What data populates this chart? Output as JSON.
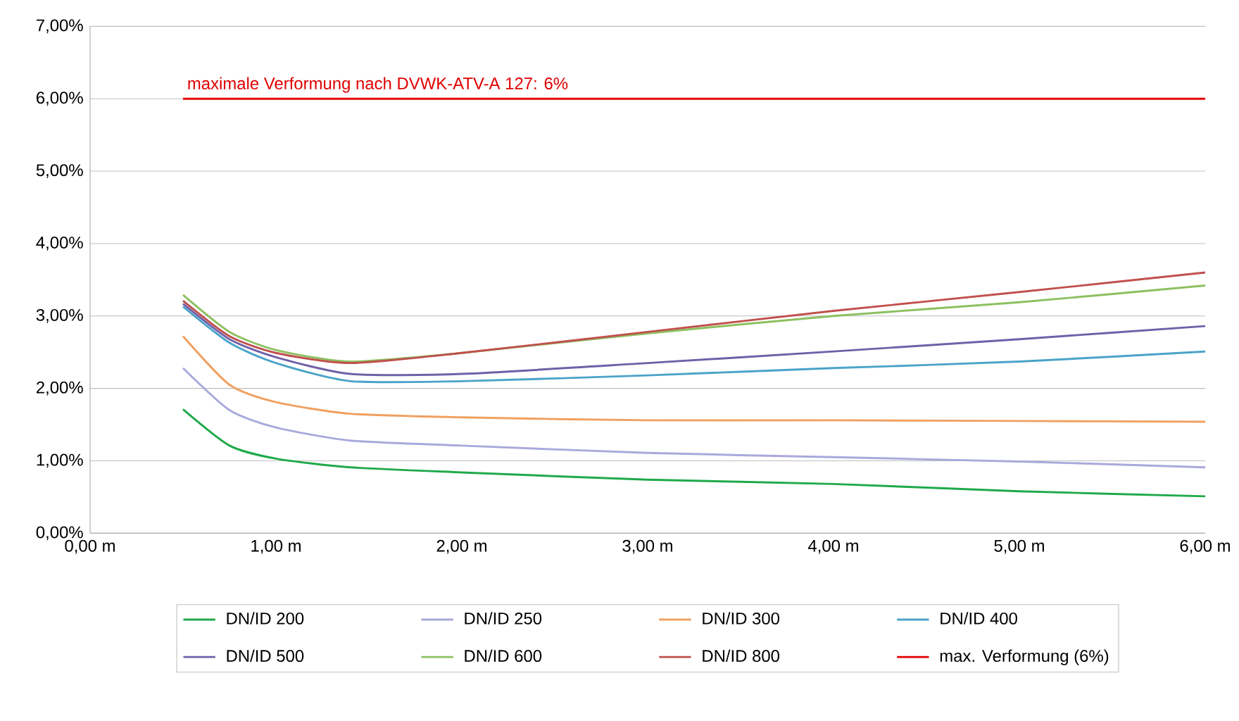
{
  "chart_data": {
    "type": "line",
    "x": [
      0.5,
      0.75,
      1.0,
      1.4,
      2.0,
      3.0,
      4.0,
      5.0,
      6.0
    ],
    "series": [
      {
        "name": "DN/ID 200",
        "color": "#1fa94a",
        "values": [
          1.71,
          1.21,
          1.03,
          0.91,
          0.84,
          0.74,
          0.68,
          0.58,
          0.51
        ]
      },
      {
        "name": "DN/ID 250",
        "color": "#a9a9dc",
        "values": [
          2.28,
          1.7,
          1.46,
          1.28,
          1.21,
          1.11,
          1.05,
          0.99,
          0.91
        ]
      },
      {
        "name": "DN/ID 300",
        "color": "#f0a060",
        "values": [
          2.72,
          2.05,
          1.81,
          1.65,
          1.6,
          1.56,
          1.56,
          1.55,
          1.54
        ]
      },
      {
        "name": "DN/ID 400",
        "color": "#4aa3c8",
        "values": [
          3.13,
          2.63,
          2.35,
          2.1,
          2.1,
          2.18,
          2.28,
          2.37,
          2.51
        ]
      },
      {
        "name": "DN/ID 500",
        "color": "#7060a8",
        "values": [
          3.17,
          2.68,
          2.43,
          2.2,
          2.2,
          2.35,
          2.51,
          2.68,
          2.86
        ]
      },
      {
        "name": "DN/ID 600",
        "color": "#8cc060",
        "values": [
          3.29,
          2.78,
          2.53,
          2.37,
          2.49,
          2.76,
          3.0,
          3.19,
          3.42
        ]
      },
      {
        "name": "DN/ID 800",
        "color": "#c0504d",
        "values": [
          3.21,
          2.72,
          2.49,
          2.35,
          2.49,
          2.78,
          3.07,
          3.33,
          3.6
        ]
      },
      {
        "name": "max. Verformung (6%)",
        "color": "#e00000",
        "x": [
          0.5,
          6.0
        ],
        "values": [
          6.0,
          6.0
        ]
      }
    ],
    "annotations": [
      {
        "text": "maximale Verformung nach DVWK-ATV-A 127: 6%",
        "x": 0.5,
        "y": 6.0
      }
    ],
    "xlim": [
      0,
      6
    ],
    "ylim": [
      0,
      7
    ],
    "xticks": [
      {
        "value": 0,
        "label": "0,00 m"
      },
      {
        "value": 1,
        "label": "1,00 m"
      },
      {
        "value": 2,
        "label": "2,00 m"
      },
      {
        "value": 3,
        "label": "3,00 m"
      },
      {
        "value": 4,
        "label": "4,00 m"
      },
      {
        "value": 5,
        "label": "5,00 m"
      },
      {
        "value": 6,
        "label": "6,00 m"
      }
    ],
    "yticks": [
      {
        "value": 0,
        "label": "0,00%"
      },
      {
        "value": 1,
        "label": "1,00%"
      },
      {
        "value": 2,
        "label": "2,00%"
      },
      {
        "value": 3,
        "label": "3,00%"
      },
      {
        "value": 4,
        "label": "4,00%"
      },
      {
        "value": 5,
        "label": "5,00%"
      },
      {
        "value": 6,
        "label": "6,00%"
      },
      {
        "value": 7,
        "label": "7,00%"
      }
    ],
    "grid": "y",
    "legend": "bottom",
    "marker": "none",
    "line_style": "solid"
  }
}
